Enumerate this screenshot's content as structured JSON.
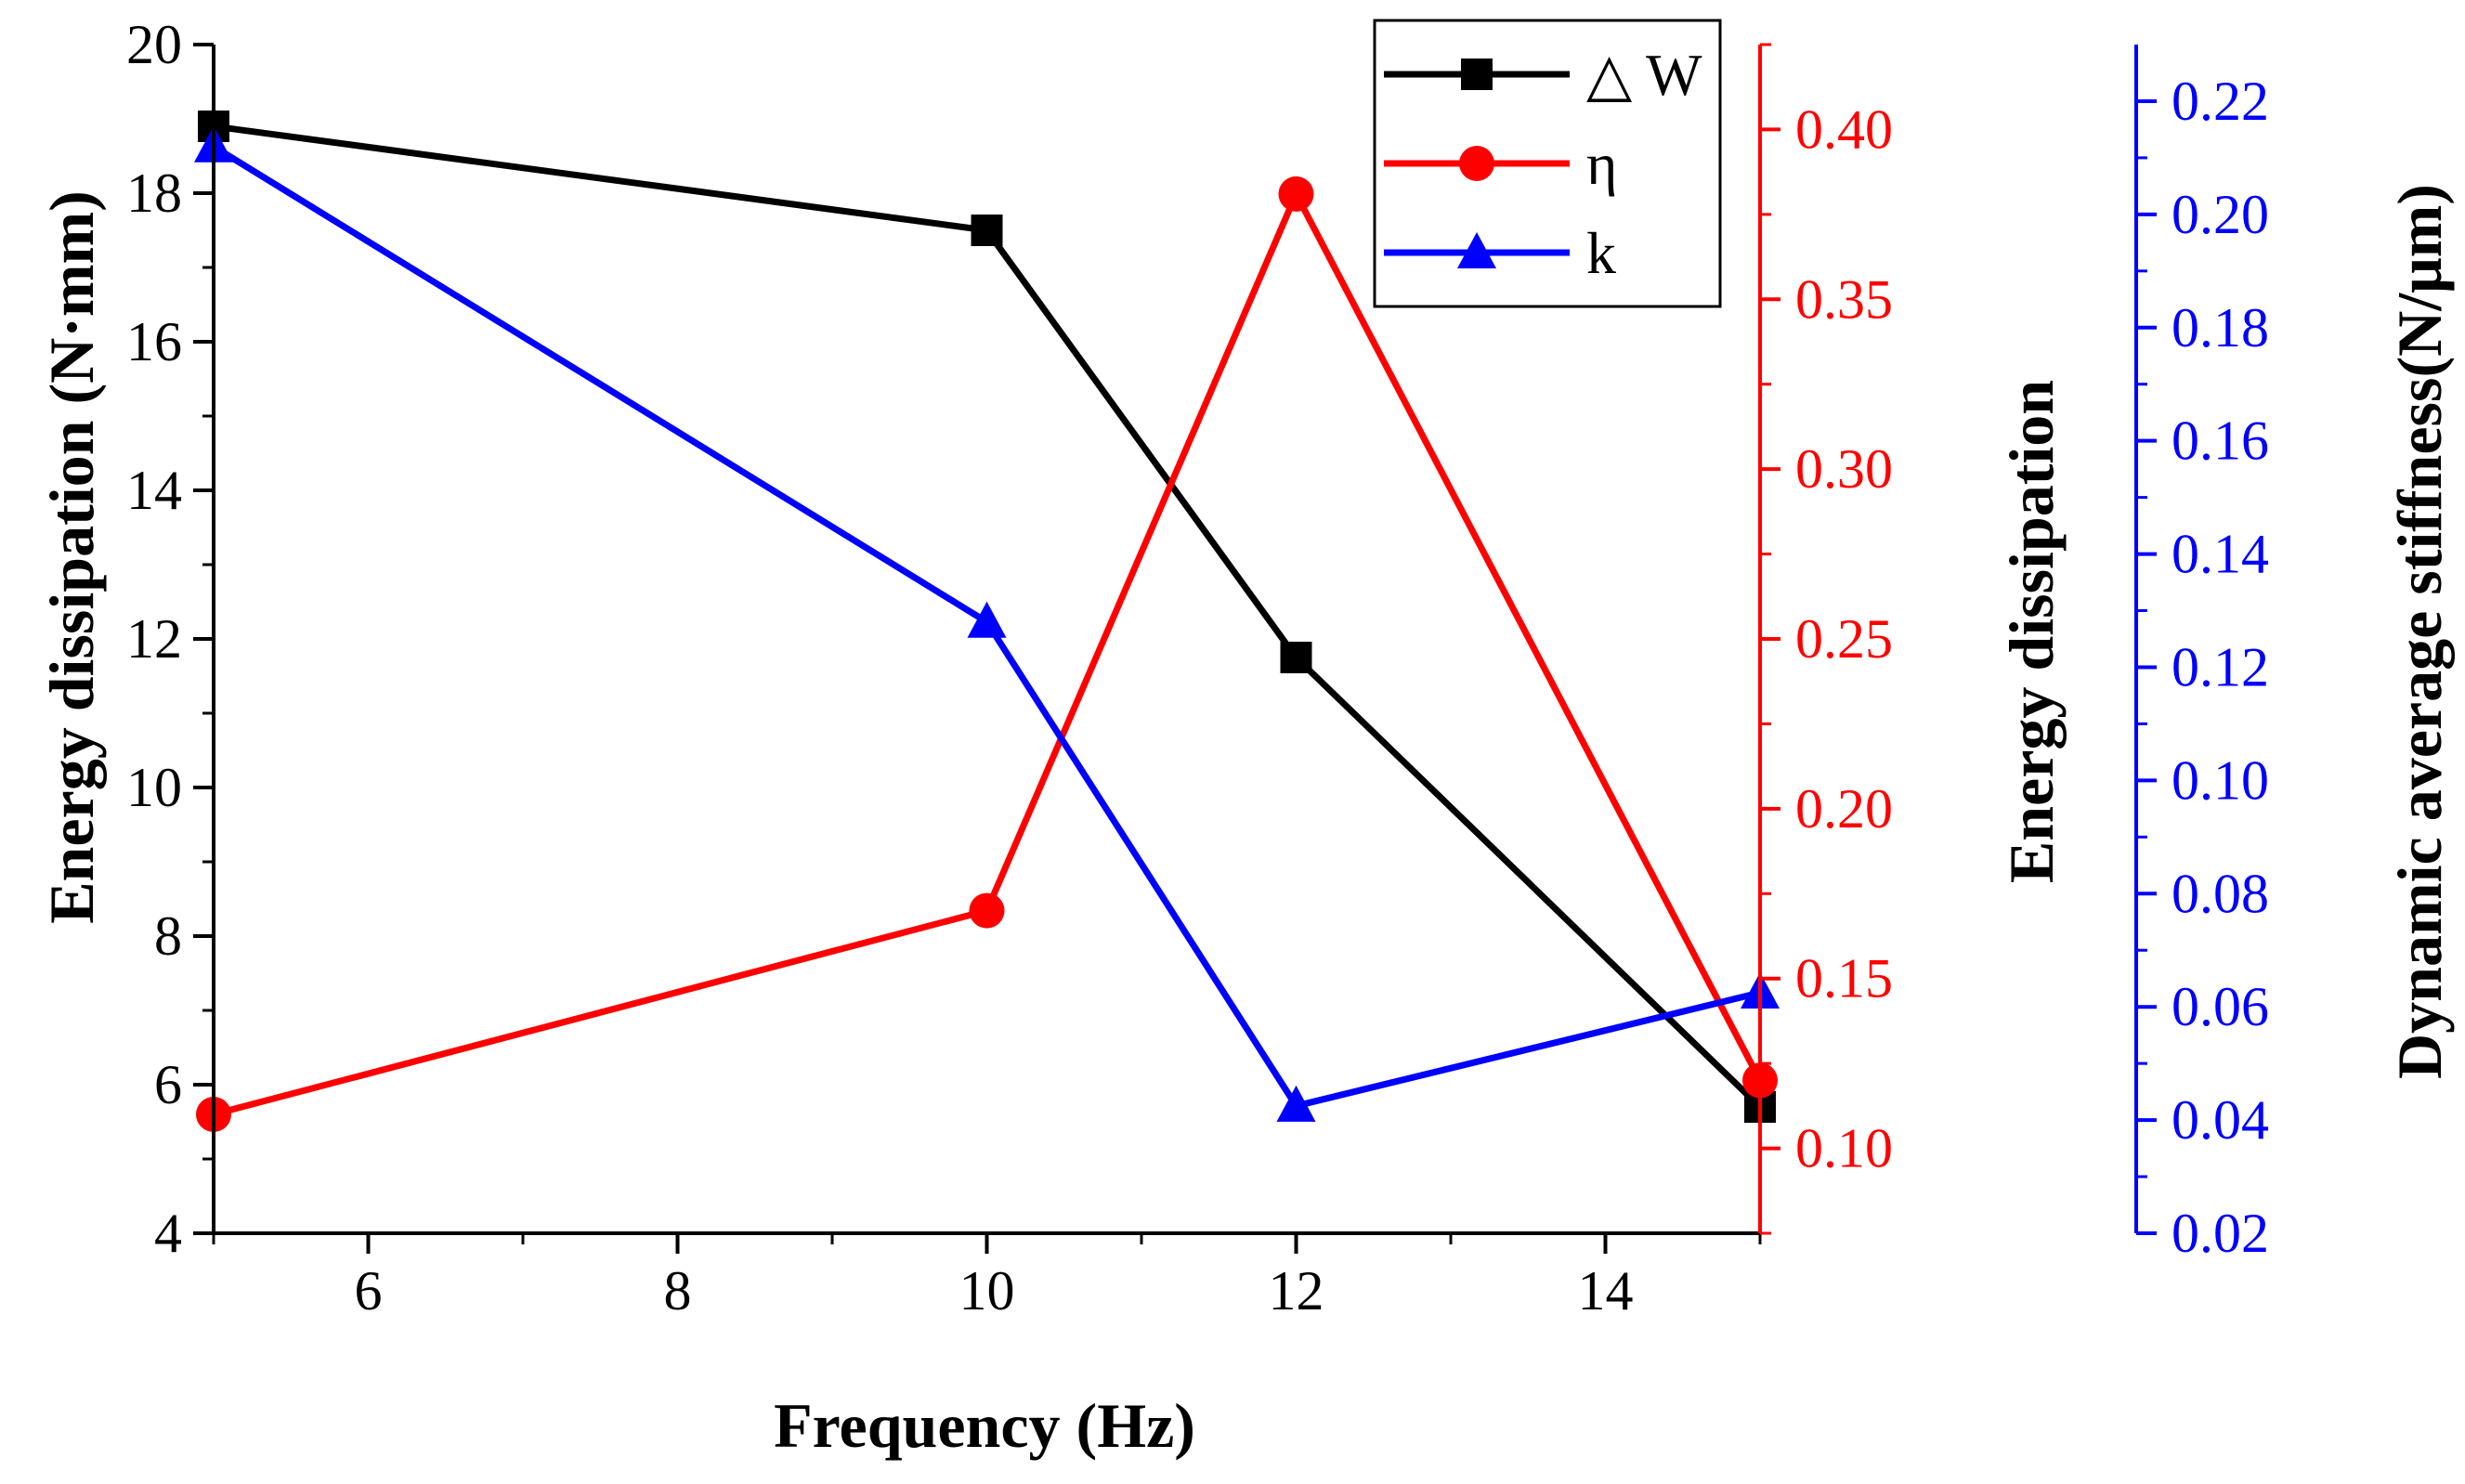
{
  "chart_data": {
    "type": "line",
    "x": [
      5,
      10,
      12,
      15
    ],
    "xlabel": "Frequency (Hz)",
    "xlim": [
      5,
      15
    ],
    "xticks": [
      6,
      8,
      10,
      12,
      14
    ],
    "xtick_labels": [
      "6",
      "8",
      "10",
      "12",
      "14"
    ],
    "axes": {
      "left": {
        "label": "Energy dissipation (N·mm)",
        "range": [
          4,
          20
        ],
        "ticks": [
          4,
          6,
          8,
          10,
          12,
          14,
          16,
          18,
          20
        ],
        "tick_labels": [
          "4",
          "6",
          "8",
          "10",
          "12",
          "14",
          "16",
          "18",
          "20"
        ],
        "color": "#000000"
      },
      "right1": {
        "label": "Energy dissipation",
        "range": [
          0.075,
          0.425
        ],
        "ticks": [
          0.1,
          0.15,
          0.2,
          0.25,
          0.3,
          0.35,
          0.4
        ],
        "tick_labels": [
          "0.10",
          "0.15",
          "0.20",
          "0.25",
          "0.30",
          "0.35",
          "0.40"
        ],
        "color": "#ff0000"
      },
      "right2": {
        "label": "Dynamic average stiffness(N/μm)",
        "range": [
          0.02,
          0.23
        ],
        "ticks": [
          0.02,
          0.04,
          0.06,
          0.08,
          0.1,
          0.12,
          0.14,
          0.16,
          0.18,
          0.2,
          0.22
        ],
        "tick_labels": [
          "0.02",
          "0.04",
          "0.06",
          "0.08",
          "0.10",
          "0.12",
          "0.14",
          "0.16",
          "0.18",
          "0.20",
          "0.22"
        ],
        "color": "#0000ff"
      }
    },
    "series": [
      {
        "name": "△ W",
        "axis": "left",
        "color": "#000000",
        "marker": "square",
        "values": [
          18.9,
          17.5,
          11.75,
          5.7
        ]
      },
      {
        "name": "η",
        "axis": "right1",
        "color": "#ff0000",
        "marker": "circle",
        "values": [
          0.11,
          0.17,
          0.381,
          0.12
        ]
      },
      {
        "name": "k",
        "axis": "right2",
        "color": "#0000ff",
        "marker": "triangle",
        "values": [
          0.212,
          0.128,
          0.0425,
          0.0625
        ]
      }
    ],
    "legend": {
      "position": "top-right"
    }
  }
}
